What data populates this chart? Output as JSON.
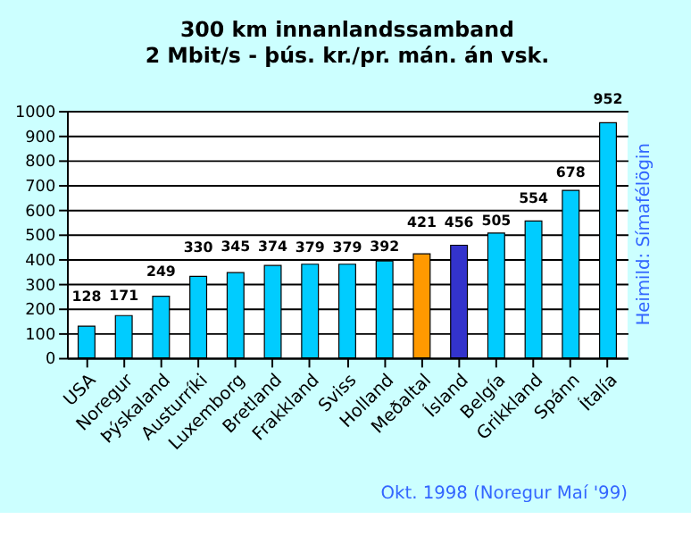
{
  "chart_data": {
    "type": "bar",
    "title": "300 km innanlandssamband",
    "subtitle": "2 Mbit/s - þús. kr./pr. mán. án vsk.",
    "categories": [
      "USA",
      "Noregur",
      "Þýskaland",
      "Austurríki",
      "Luxemborg",
      "Bretland",
      "Frakkland",
      "Sviss",
      "Holland",
      "Meðaltal",
      "Ísland",
      "Belgía",
      "Grikkland",
      "Spánn",
      "Ítalía"
    ],
    "values": [
      128,
      171,
      249,
      330,
      345,
      374,
      379,
      379,
      392,
      421,
      456,
      505,
      554,
      678,
      952
    ],
    "colors": [
      "#00ccff",
      "#00ccff",
      "#00ccff",
      "#00ccff",
      "#00ccff",
      "#00ccff",
      "#00ccff",
      "#00ccff",
      "#00ccff",
      "#ff9900",
      "#3333cc",
      "#00ccff",
      "#00ccff",
      "#00ccff",
      "#00ccff"
    ],
    "ylim": [
      0,
      1000
    ],
    "yticks": [
      0,
      100,
      200,
      300,
      400,
      500,
      600,
      700,
      800,
      900,
      1000
    ],
    "grid": "y",
    "data_labels": true,
    "annotations": [
      "Okt. 1998 (Noregur Maí '99)",
      "Heimild: Símafélögin"
    ]
  }
}
